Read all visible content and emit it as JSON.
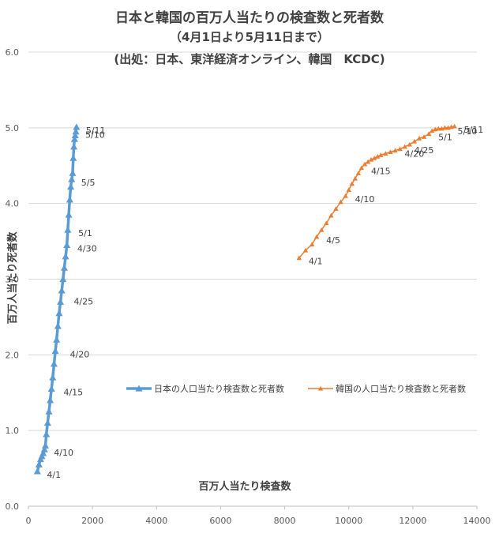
{
  "title_line1": "日本と韓国の百万人当たりの検査数と死者数",
  "title_line2": "（4月1日より5月11日まで）",
  "title_line3": "(出処：日本、東洋経済オンライン、韓国　KCDC)",
  "colors": {
    "japan": "#5B9BD5",
    "korea": "#ED7D31",
    "grid": "#D9D9D9",
    "axis": "#BFBFBF"
  },
  "chart_data": {
    "type": "line",
    "xlabel": "百万人当たり検査数",
    "ylabel": "百万人当たり死者数",
    "xlim": [
      0,
      14000
    ],
    "ylim": [
      0,
      6.0
    ],
    "xticks": [
      "0",
      "2000",
      "4000",
      "6000",
      "8000",
      "10000",
      "12000",
      "14000"
    ],
    "yticks": [
      "0.0",
      "1.0",
      "2.0",
      "3.0",
      "4.0",
      "5.0",
      "6.0"
    ],
    "legend_position": "middle",
    "series": [
      {
        "name": "日本の人口当たり検査数と死者数",
        "x": [
          280,
          330,
          380,
          420,
          460,
          500,
          530,
          560,
          600,
          640,
          680,
          720,
          760,
          800,
          840,
          880,
          920,
          960,
          1000,
          1040,
          1080,
          1120,
          1160,
          1200,
          1230,
          1260,
          1290,
          1320,
          1350,
          1380,
          1400,
          1420,
          1440,
          1460,
          1480,
          1500
        ],
        "y": [
          0.46,
          0.55,
          0.62,
          0.66,
          0.7,
          0.75,
          0.8,
          0.95,
          1.1,
          1.25,
          1.4,
          1.55,
          1.7,
          1.88,
          2.05,
          2.2,
          2.38,
          2.55,
          2.7,
          2.85,
          3.0,
          3.15,
          3.3,
          3.45,
          3.65,
          3.85,
          4.05,
          4.22,
          4.32,
          4.4,
          4.6,
          4.75,
          4.85,
          4.9,
          4.95,
          5.01
        ]
      },
      {
        "name": "韓国の人口当たり検査数と死者数",
        "x": [
          8450,
          8650,
          8850,
          9000,
          9150,
          9300,
          9450,
          9600,
          9750,
          9900,
          10000,
          10100,
          10200,
          10300,
          10400,
          10500,
          10600,
          10700,
          10800,
          10900,
          11000,
          11150,
          11300,
          11450,
          11600,
          11750,
          11900,
          12050,
          12200,
          12350,
          12500,
          12600,
          12700,
          12800,
          12900,
          13000,
          13100,
          13200,
          13300
        ],
        "y": [
          3.28,
          3.38,
          3.46,
          3.56,
          3.65,
          3.74,
          3.84,
          3.93,
          4.02,
          4.1,
          4.18,
          4.26,
          4.33,
          4.4,
          4.47,
          4.52,
          4.55,
          4.58,
          4.6,
          4.62,
          4.64,
          4.66,
          4.68,
          4.7,
          4.72,
          4.75,
          4.78,
          4.82,
          4.86,
          4.88,
          4.92,
          4.96,
          4.98,
          4.99,
          4.99,
          5.0,
          5.0,
          5.01,
          5.02
        ]
      }
    ],
    "annotations": [
      {
        "series": 0,
        "text": "4/1",
        "x": 280,
        "y": 0.46
      },
      {
        "series": 0,
        "text": "4/10",
        "x": 500,
        "y": 0.75
      },
      {
        "series": 0,
        "text": "4/15",
        "x": 800,
        "y": 1.55
      },
      {
        "series": 0,
        "text": "4/20",
        "x": 1000,
        "y": 2.05
      },
      {
        "series": 0,
        "text": "4/25",
        "x": 1120,
        "y": 2.75
      },
      {
        "series": 0,
        "text": "4/30",
        "x": 1230,
        "y": 3.45
      },
      {
        "series": 0,
        "text": "5/1",
        "x": 1260,
        "y": 3.65
      },
      {
        "series": 0,
        "text": "5/5",
        "x": 1350,
        "y": 4.32
      },
      {
        "series": 0,
        "text": "5/10",
        "x": 1480,
        "y": 4.95
      },
      {
        "series": 0,
        "text": "5/11",
        "x": 1500,
        "y": 5.01
      },
      {
        "series": 1,
        "text": "4/1",
        "x": 8450,
        "y": 3.28
      },
      {
        "series": 1,
        "text": "4/5",
        "x": 9000,
        "y": 3.56
      },
      {
        "series": 1,
        "text": "4/10",
        "x": 9900,
        "y": 4.1
      },
      {
        "series": 1,
        "text": "4/15",
        "x": 10400,
        "y": 4.47
      },
      {
        "series": 1,
        "text": "4/20",
        "x": 11450,
        "y": 4.7
      },
      {
        "series": 1,
        "text": "4/25",
        "x": 11750,
        "y": 4.75
      },
      {
        "series": 1,
        "text": "5/1",
        "x": 12500,
        "y": 4.92
      },
      {
        "series": 1,
        "text": "5/10",
        "x": 13100,
        "y": 5.0
      },
      {
        "series": 1,
        "text": "5/11",
        "x": 13300,
        "y": 5.02
      }
    ]
  }
}
